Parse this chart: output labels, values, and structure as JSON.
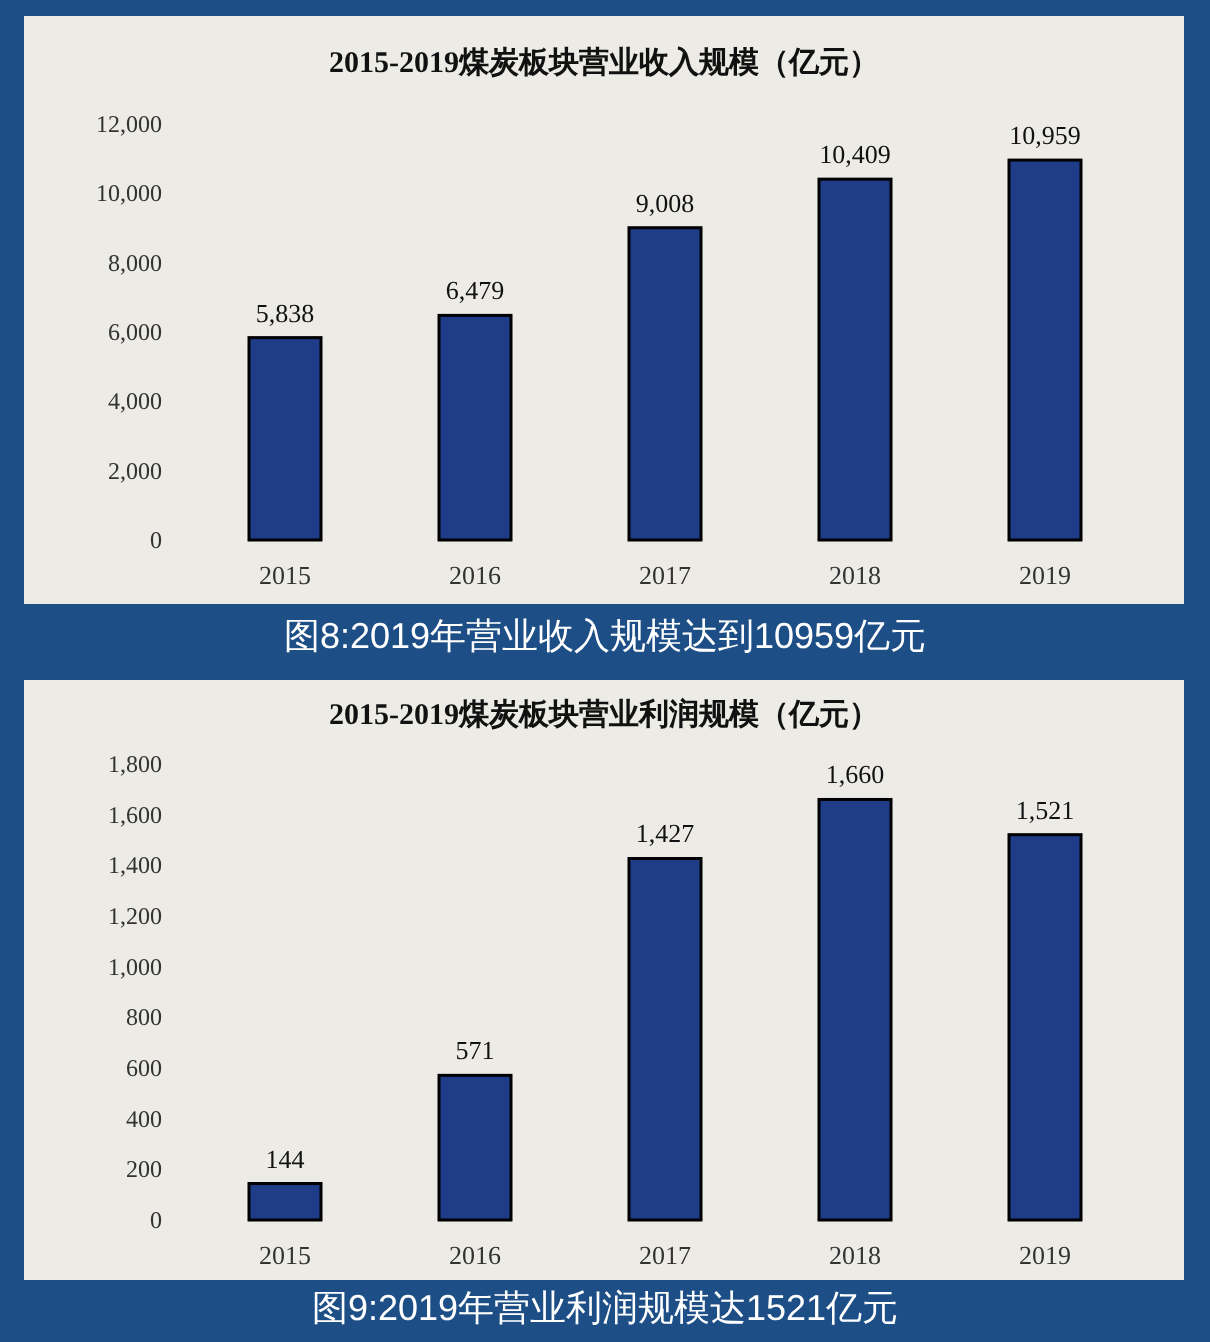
{
  "chart_data": [
    {
      "type": "bar",
      "title": "2015-2019煤炭板块营业收入规模（亿元）",
      "categories": [
        "2015",
        "2016",
        "2017",
        "2018",
        "2019"
      ],
      "values": [
        5838,
        6479,
        9008,
        10409,
        10959
      ],
      "value_labels": [
        "5,838",
        "6,479",
        "9,008",
        "10,409",
        "10,959"
      ],
      "color": "#1f3c88",
      "ylim": [
        0,
        12000
      ],
      "yticks": [
        0,
        {
          "value": 2000,
          "label": "2,000"
        },
        {
          "value": 4000,
          "label": "4,000"
        },
        {
          "value": 6000,
          "label": "6,000"
        },
        {
          "value": 8000,
          "label": "8,000"
        },
        {
          "value": 10000,
          "label": "10,000"
        },
        {
          "value": 12000,
          "label": "12,000"
        }
      ],
      "grid": false,
      "annotations": [
        "图8:2019年营业收入规模达到10959亿元"
      ]
    },
    {
      "type": "bar",
      "title": "2015-2019煤炭板块营业利润规模（亿元）",
      "categories": [
        "2015",
        "2016",
        "2017",
        "2018",
        "2019"
      ],
      "values": [
        144,
        571,
        1427,
        1660,
        1521
      ],
      "value_labels": [
        "144",
        "571",
        "1,427",
        "1,660",
        "1,521"
      ],
      "color": "#1f3c88",
      "ylim": [
        0,
        1800
      ],
      "yticks": [
        0,
        200,
        400,
        600,
        800,
        {
          "value": 1000,
          "label": "1,000"
        },
        {
          "value": 1200,
          "label": "1,200"
        },
        {
          "value": 1400,
          "label": "1,400"
        },
        {
          "value": 1600,
          "label": "1,600"
        },
        {
          "value": 1800,
          "label": "1,800"
        }
      ],
      "grid": false,
      "annotations": [
        "图9:2019年营业利润规模达1521亿元"
      ]
    }
  ]
}
